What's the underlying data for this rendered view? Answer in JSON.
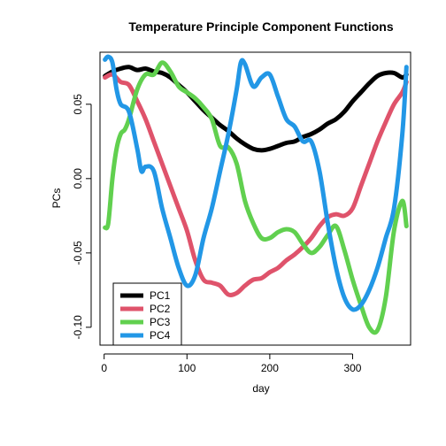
{
  "chart_data": {
    "type": "line",
    "title": "Temperature Principle Component Functions",
    "xlabel": "day",
    "ylabel": "PCs",
    "xlim": [
      -5,
      370
    ],
    "ylim": [
      -0.112,
      0.085
    ],
    "xticks": [
      0,
      100,
      200,
      300
    ],
    "yticks": [
      -0.1,
      -0.05,
      0.0,
      0.05
    ],
    "ytick_labels": [
      "-0.10",
      "-0.05",
      "0.00",
      "0.05"
    ],
    "legend_position": "bottom-left",
    "grid": false,
    "series": [
      {
        "name": "PC1",
        "color": "#000000",
        "x": [
          1,
          10,
          20,
          30,
          40,
          50,
          60,
          70,
          80,
          90,
          100,
          110,
          120,
          130,
          140,
          150,
          160,
          170,
          180,
          190,
          200,
          210,
          220,
          230,
          240,
          250,
          260,
          270,
          280,
          290,
          300,
          310,
          320,
          330,
          340,
          350,
          360,
          365
        ],
        "y": [
          0.069,
          0.072,
          0.074,
          0.075,
          0.073,
          0.074,
          0.072,
          0.071,
          0.068,
          0.063,
          0.058,
          0.052,
          0.046,
          0.041,
          0.036,
          0.032,
          0.027,
          0.023,
          0.02,
          0.019,
          0.02,
          0.022,
          0.024,
          0.025,
          0.028,
          0.03,
          0.033,
          0.037,
          0.04,
          0.045,
          0.052,
          0.058,
          0.064,
          0.069,
          0.071,
          0.071,
          0.068,
          0.07
        ]
      },
      {
        "name": "PC2",
        "color": "#DF536B",
        "x": [
          1,
          10,
          20,
          30,
          40,
          50,
          60,
          70,
          80,
          90,
          100,
          110,
          120,
          130,
          140,
          150,
          160,
          170,
          180,
          190,
          200,
          210,
          220,
          230,
          240,
          250,
          260,
          270,
          280,
          290,
          300,
          310,
          320,
          330,
          340,
          350,
          360,
          365
        ],
        "y": [
          0.068,
          0.07,
          0.065,
          0.063,
          0.052,
          0.04,
          0.025,
          0.01,
          -0.005,
          -0.02,
          -0.035,
          -0.055,
          -0.068,
          -0.07,
          -0.072,
          -0.078,
          -0.077,
          -0.072,
          -0.068,
          -0.067,
          -0.063,
          -0.06,
          -0.055,
          -0.051,
          -0.046,
          -0.04,
          -0.032,
          -0.026,
          -0.024,
          -0.025,
          -0.02,
          -0.005,
          0.01,
          0.025,
          0.038,
          0.05,
          0.058,
          0.065
        ]
      },
      {
        "name": "PC3",
        "color": "#61D04F",
        "x": [
          1,
          5,
          10,
          15,
          20,
          25,
          30,
          40,
          50,
          60,
          70,
          80,
          90,
          100,
          110,
          120,
          130,
          140,
          150,
          160,
          170,
          180,
          190,
          200,
          210,
          220,
          230,
          240,
          250,
          260,
          270,
          280,
          290,
          300,
          310,
          320,
          330,
          340,
          350,
          360,
          365
        ],
        "y": [
          -0.033,
          -0.03,
          0.0,
          0.02,
          0.03,
          0.033,
          0.04,
          0.06,
          0.07,
          0.07,
          0.078,
          0.072,
          0.062,
          0.058,
          0.054,
          0.048,
          0.04,
          0.022,
          0.021,
          0.01,
          -0.015,
          -0.03,
          -0.04,
          -0.04,
          -0.036,
          -0.034,
          -0.036,
          -0.044,
          -0.05,
          -0.046,
          -0.038,
          -0.032,
          -0.048,
          -0.068,
          -0.085,
          -0.1,
          -0.102,
          -0.08,
          -0.035,
          -0.015,
          -0.032
        ]
      },
      {
        "name": "PC4",
        "color": "#2297E6",
        "x": [
          1,
          5,
          10,
          15,
          20,
          30,
          40,
          45,
          50,
          60,
          70,
          80,
          90,
          100,
          110,
          120,
          130,
          140,
          150,
          160,
          165,
          170,
          180,
          190,
          200,
          210,
          220,
          230,
          240,
          250,
          260,
          270,
          280,
          290,
          300,
          310,
          320,
          330,
          340,
          350,
          360,
          365
        ],
        "y": [
          0.08,
          0.082,
          0.078,
          0.06,
          0.05,
          0.045,
          0.02,
          0.005,
          0.008,
          0.005,
          -0.02,
          -0.04,
          -0.06,
          -0.072,
          -0.065,
          -0.04,
          -0.02,
          0.005,
          0.03,
          0.06,
          0.078,
          0.077,
          0.062,
          0.068,
          0.07,
          0.055,
          0.04,
          0.035,
          0.025,
          0.025,
          0.005,
          -0.03,
          -0.06,
          -0.08,
          -0.088,
          -0.085,
          -0.075,
          -0.06,
          -0.04,
          -0.02,
          0.03,
          0.075
        ]
      }
    ]
  }
}
